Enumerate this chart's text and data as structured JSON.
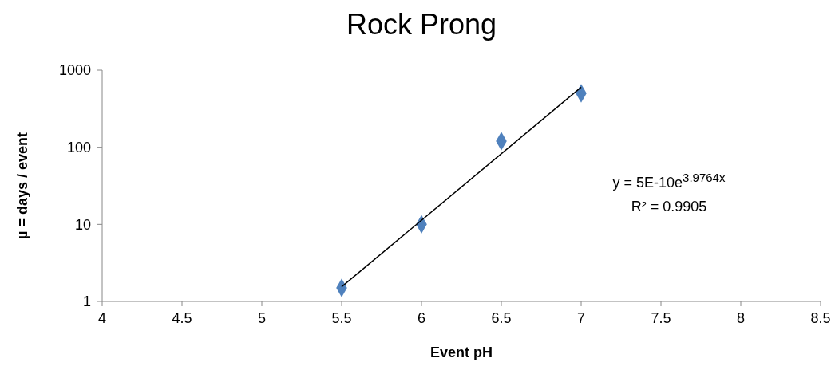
{
  "chart_data": {
    "type": "scatter",
    "title": "Rock Prong",
    "xlabel": "Event pH",
    "ylabel": "µ = days / event",
    "x": [
      5.5,
      6,
      6.5,
      7
    ],
    "series": [
      {
        "color": "#4f81bd",
        "values": [
          1.5,
          10,
          120,
          500
        ],
        "marker": "diamond"
      },
      {
        "type": "line",
        "color": "#000000",
        "x": [
          5.5,
          7
        ],
        "values": [
          1.55,
          600
        ],
        "marker": "none"
      }
    ],
    "xlim": [
      4,
      8.5
    ],
    "xticks": [
      4,
      4.5,
      5,
      5.5,
      6,
      6.5,
      7,
      7.5,
      8,
      8.5
    ],
    "ylim": [
      1,
      1000
    ],
    "yticks": [
      1,
      10,
      100,
      1000
    ],
    "log": "y",
    "annotations": [
      "y = 5E-10e$^{3.9764x}$",
      "R² = 0.9905"
    ]
  }
}
